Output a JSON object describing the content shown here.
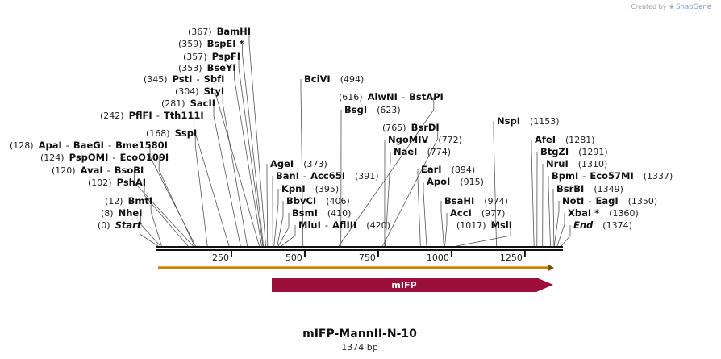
{
  "credit": {
    "prefix": "Created by",
    "brand": "SnapGene"
  },
  "map": {
    "title": "mIFP-MannII-N-10",
    "length_label": "1374 bp",
    "length": 1374,
    "ticks": [
      "250",
      "500",
      "750",
      "1000",
      "1250"
    ],
    "feature": {
      "name": "mIFP",
      "color": "#9b0f3a"
    },
    "orf_color": "#f0a020"
  },
  "sites": [
    {
      "pos": "(367)",
      "name": "BamHI"
    },
    {
      "pos": "(359)",
      "name": "BspEI *"
    },
    {
      "pos": "(357)",
      "name": "PspFI"
    },
    {
      "pos": "(353)",
      "name": "BseYI"
    },
    {
      "pos": "(345)",
      "name": "PstI",
      "sep": "-",
      "name2": "SbfI"
    },
    {
      "pos": "(304)",
      "name": "StyI"
    },
    {
      "pos": "(281)",
      "name": "SacII"
    },
    {
      "pos": "(242)",
      "name": "PflFI",
      "sep": "-",
      "name2": "Tth111I"
    },
    {
      "pos": "(168)",
      "name": "SspI"
    },
    {
      "pos": "(128)",
      "name": "ApaI",
      "sep": "-",
      "name2": "BaeGI",
      "sep2": "-",
      "name3": "Bme1580I"
    },
    {
      "pos": "(124)",
      "name": "PspOMI",
      "sep": "-",
      "name2": "EcoO109I"
    },
    {
      "pos": "(120)",
      "name": "AvaI",
      "sep": "-",
      "name2": "BsoBI"
    },
    {
      "pos": "(102)",
      "name": "PshAI"
    },
    {
      "pos": "(12)",
      "name": "BmtI"
    },
    {
      "pos": "(8)",
      "name": "NheI"
    },
    {
      "pos": "(0)",
      "name": "Start"
    },
    {
      "pos": "(494)",
      "name": "BciVI"
    },
    {
      "pos": "(616)",
      "name": "AlwNI",
      "sep": "-",
      "name2": "BstAPI"
    },
    {
      "pos": "(623)",
      "name": "BsgI"
    },
    {
      "pos": "(373)",
      "name": "AgeI"
    },
    {
      "pos": "(391)",
      "name": "BanI",
      "sep": "-",
      "name2": "Acc65I"
    },
    {
      "pos": "(395)",
      "name": "KpnI"
    },
    {
      "pos": "(406)",
      "name": "BbvCI"
    },
    {
      "pos": "(410)",
      "name": "BsmI"
    },
    {
      "pos": "(420)",
      "name": "MluI",
      "sep": "-",
      "name2": "AflIII"
    },
    {
      "pos": "(765)",
      "name": "BsrDI"
    },
    {
      "pos": "(772)",
      "name": "NgoMIV"
    },
    {
      "pos": "(774)",
      "name": "NaeI"
    },
    {
      "pos": "(894)",
      "name": "EarI"
    },
    {
      "pos": "(915)",
      "name": "ApoI"
    },
    {
      "pos": "(974)",
      "name": "BsaHI"
    },
    {
      "pos": "(977)",
      "name": "AccI"
    },
    {
      "pos": "(1017)",
      "name": "MslI"
    },
    {
      "pos": "(1153)",
      "name": "NspI"
    },
    {
      "pos": "(1281)",
      "name": "AfeI"
    },
    {
      "pos": "(1291)",
      "name": "BtgZI"
    },
    {
      "pos": "(1310)",
      "name": "NruI"
    },
    {
      "pos": "(1337)",
      "name": "BpmI",
      "sep": "-",
      "name2": "Eco57MI"
    },
    {
      "pos": "(1349)",
      "name": "BsrBI"
    },
    {
      "pos": "(1350)",
      "name": "NotI",
      "sep": "-",
      "name2": "EagI"
    },
    {
      "pos": "(1360)",
      "name": "XbaI *"
    },
    {
      "pos": "(1374)",
      "name": "End"
    }
  ]
}
